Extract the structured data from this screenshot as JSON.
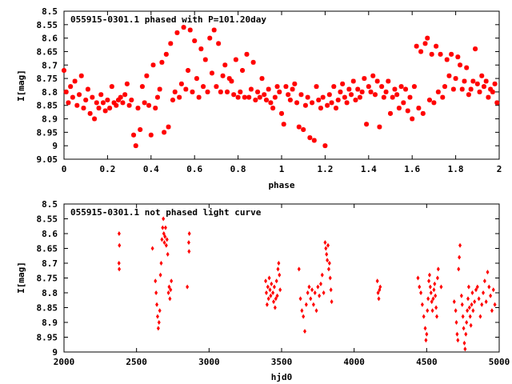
{
  "chart_data": [
    {
      "type": "scatter",
      "title": "055915-0301.1 phased with P=101.20day",
      "xlabel": "phase",
      "ylabel": "I[mag]",
      "xlim": [
        0,
        2
      ],
      "ylim": [
        8.5,
        9.05
      ],
      "y_inverted": true,
      "x_ticks": [
        "0",
        "0.2",
        "0.4",
        "0.6",
        "0.8",
        "1",
        "1.2",
        "1.4",
        "1.6",
        "1.8",
        "2"
      ],
      "y_ticks": [
        "8.5",
        "8.55",
        "8.6",
        "8.65",
        "8.7",
        "8.75",
        "8.8",
        "8.85",
        "8.9",
        "8.95",
        "9",
        "9.05"
      ],
      "grid": false,
      "marker": "star",
      "color": "#ff0000",
      "points": [
        [
          0.0,
          8.72
        ],
        [
          0.01,
          8.8
        ],
        [
          0.02,
          8.84
        ],
        [
          0.03,
          8.78
        ],
        [
          0.04,
          8.82
        ],
        [
          0.05,
          8.76
        ],
        [
          0.06,
          8.85
        ],
        [
          0.07,
          8.81
        ],
        [
          0.08,
          8.74
        ],
        [
          0.09,
          8.86
        ],
        [
          0.1,
          8.83
        ],
        [
          0.11,
          8.79
        ],
        [
          0.12,
          8.88
        ],
        [
          0.13,
          8.82
        ],
        [
          0.14,
          8.9
        ],
        [
          0.15,
          8.84
        ],
        [
          0.16,
          8.86
        ],
        [
          0.17,
          8.81
        ],
        [
          0.18,
          8.84
        ],
        [
          0.19,
          8.87
        ],
        [
          0.2,
          8.83
        ],
        [
          0.21,
          8.86
        ],
        [
          0.22,
          8.78
        ],
        [
          0.23,
          8.84
        ],
        [
          0.24,
          8.85
        ],
        [
          0.25,
          8.83
        ],
        [
          0.26,
          8.82
        ],
        [
          0.27,
          8.84
        ],
        [
          0.28,
          8.81
        ],
        [
          0.29,
          8.77
        ],
        [
          0.3,
          8.85
        ],
        [
          0.31,
          8.83
        ],
        [
          0.32,
          8.96
        ],
        [
          0.33,
          9.0
        ],
        [
          0.34,
          8.86
        ],
        [
          0.35,
          8.94
        ],
        [
          0.36,
          8.78
        ],
        [
          0.37,
          8.84
        ],
        [
          0.38,
          8.74
        ],
        [
          0.39,
          8.85
        ],
        [
          0.4,
          8.96
        ],
        [
          0.41,
          8.7
        ],
        [
          0.42,
          8.86
        ],
        [
          0.43,
          8.82
        ],
        [
          0.44,
          8.79
        ],
        [
          0.45,
          8.69
        ],
        [
          0.46,
          8.95
        ],
        [
          0.47,
          8.66
        ],
        [
          0.48,
          8.93
        ],
        [
          0.49,
          8.62
        ],
        [
          0.5,
          8.83
        ],
        [
          0.51,
          8.8
        ],
        [
          0.52,
          8.58
        ],
        [
          0.53,
          8.82
        ],
        [
          0.54,
          8.77
        ],
        [
          0.55,
          8.56
        ],
        [
          0.56,
          8.79
        ],
        [
          0.57,
          8.72
        ],
        [
          0.58,
          8.57
        ],
        [
          0.59,
          8.8
        ],
        [
          0.6,
          8.61
        ],
        [
          0.61,
          8.75
        ],
        [
          0.62,
          8.82
        ],
        [
          0.63,
          8.64
        ],
        [
          0.64,
          8.78
        ],
        [
          0.65,
          8.68
        ],
        [
          0.66,
          8.8
        ],
        [
          0.67,
          8.6
        ],
        [
          0.68,
          8.73
        ],
        [
          0.69,
          8.57
        ],
        [
          0.7,
          8.78
        ],
        [
          0.71,
          8.62
        ],
        [
          0.72,
          8.8
        ],
        [
          0.73,
          8.74
        ],
        [
          0.74,
          8.7
        ],
        [
          0.75,
          8.8
        ],
        [
          0.76,
          8.75
        ],
        [
          0.77,
          8.76
        ],
        [
          0.78,
          8.81
        ],
        [
          0.79,
          8.68
        ],
        [
          0.8,
          8.82
        ],
        [
          0.81,
          8.8
        ],
        [
          0.82,
          8.72
        ],
        [
          0.83,
          8.82
        ],
        [
          0.84,
          8.66
        ],
        [
          0.85,
          8.82
        ],
        [
          0.86,
          8.79
        ],
        [
          0.87,
          8.69
        ],
        [
          0.88,
          8.83
        ],
        [
          0.89,
          8.8
        ],
        [
          0.9,
          8.82
        ],
        [
          0.91,
          8.75
        ],
        [
          0.92,
          8.81
        ],
        [
          0.93,
          8.83
        ],
        [
          0.94,
          8.79
        ],
        [
          0.95,
          8.84
        ],
        [
          0.96,
          8.86
        ],
        [
          0.97,
          8.82
        ],
        [
          0.98,
          8.78
        ],
        [
          0.99,
          8.8
        ],
        [
          1.0,
          8.88
        ],
        [
          1.01,
          8.92
        ],
        [
          1.02,
          8.78
        ],
        [
          1.03,
          8.81
        ],
        [
          1.04,
          8.83
        ],
        [
          1.05,
          8.79
        ],
        [
          1.06,
          8.77
        ],
        [
          1.07,
          8.84
        ],
        [
          1.08,
          8.93
        ],
        [
          1.09,
          8.81
        ],
        [
          1.1,
          8.94
        ],
        [
          1.11,
          8.85
        ],
        [
          1.12,
          8.82
        ],
        [
          1.13,
          8.97
        ],
        [
          1.14,
          8.84
        ],
        [
          1.15,
          8.98
        ],
        [
          1.16,
          8.78
        ],
        [
          1.17,
          8.83
        ],
        [
          1.18,
          8.86
        ],
        [
          1.19,
          8.82
        ],
        [
          1.2,
          9.0
        ],
        [
          1.21,
          8.85
        ],
        [
          1.22,
          8.81
        ],
        [
          1.23,
          8.84
        ],
        [
          1.24,
          8.78
        ],
        [
          1.25,
          8.86
        ],
        [
          1.26,
          8.83
        ],
        [
          1.27,
          8.8
        ],
        [
          1.28,
          8.77
        ],
        [
          1.29,
          8.82
        ],
        [
          1.3,
          8.84
        ],
        [
          1.31,
          8.79
        ],
        [
          1.32,
          8.81
        ],
        [
          1.33,
          8.76
        ],
        [
          1.34,
          8.83
        ],
        [
          1.35,
          8.79
        ],
        [
          1.36,
          8.82
        ],
        [
          1.37,
          8.8
        ],
        [
          1.38,
          8.75
        ],
        [
          1.39,
          8.92
        ],
        [
          1.4,
          8.78
        ],
        [
          1.41,
          8.8
        ],
        [
          1.42,
          8.74
        ],
        [
          1.43,
          8.81
        ],
        [
          1.44,
          8.76
        ],
        [
          1.45,
          8.93
        ],
        [
          1.46,
          8.78
        ],
        [
          1.47,
          8.82
        ],
        [
          1.48,
          8.8
        ],
        [
          1.49,
          8.76
        ],
        [
          1.5,
          8.88
        ],
        [
          1.51,
          8.82
        ],
        [
          1.52,
          8.79
        ],
        [
          1.53,
          8.81
        ],
        [
          1.54,
          8.86
        ],
        [
          1.55,
          8.78
        ],
        [
          1.56,
          8.84
        ],
        [
          1.57,
          8.79
        ],
        [
          1.58,
          8.87
        ],
        [
          1.59,
          8.82
        ],
        [
          1.6,
          8.9
        ],
        [
          1.61,
          8.78
        ],
        [
          1.62,
          8.63
        ],
        [
          1.63,
          8.86
        ],
        [
          1.64,
          8.65
        ],
        [
          1.65,
          8.88
        ],
        [
          1.66,
          8.62
        ],
        [
          1.67,
          8.6
        ],
        [
          1.68,
          8.83
        ],
        [
          1.69,
          8.66
        ],
        [
          1.7,
          8.84
        ],
        [
          1.71,
          8.63
        ],
        [
          1.72,
          8.8
        ],
        [
          1.73,
          8.66
        ],
        [
          1.74,
          8.82
        ],
        [
          1.75,
          8.78
        ],
        [
          1.76,
          8.68
        ],
        [
          1.77,
          8.74
        ],
        [
          1.78,
          8.66
        ],
        [
          1.79,
          8.79
        ],
        [
          1.8,
          8.75
        ],
        [
          1.81,
          8.67
        ],
        [
          1.82,
          8.7
        ],
        [
          1.83,
          8.79
        ],
        [
          1.84,
          8.76
        ],
        [
          1.85,
          8.71
        ],
        [
          1.86,
          8.81
        ],
        [
          1.87,
          8.79
        ],
        [
          1.88,
          8.76
        ],
        [
          1.89,
          8.64
        ],
        [
          1.9,
          8.77
        ],
        [
          1.91,
          8.8
        ],
        [
          1.92,
          8.74
        ],
        [
          1.93,
          8.78
        ],
        [
          1.94,
          8.76
        ],
        [
          1.95,
          8.82
        ],
        [
          1.96,
          8.79
        ],
        [
          1.97,
          8.8
        ],
        [
          1.98,
          8.77
        ],
        [
          1.99,
          8.84
        ]
      ]
    },
    {
      "type": "scatter",
      "title": "055915-0301.1 not phased light curve",
      "xlabel": "hjd0",
      "ylabel": "I[mag]",
      "xlim": [
        2000,
        5000
      ],
      "ylim": [
        8.5,
        9.0
      ],
      "y_inverted": true,
      "x_ticks": [
        "2000",
        "2500",
        "3000",
        "3500",
        "4000",
        "4500",
        "5000"
      ],
      "y_ticks": [
        "8.5",
        "8.55",
        "8.6",
        "8.65",
        "8.7",
        "8.75",
        "8.8",
        "8.85",
        "8.9",
        "8.95",
        "9"
      ],
      "grid": false,
      "marker": "diamond",
      "color": "#ff0000",
      "points": [
        [
          2380,
          8.6
        ],
        [
          2382,
          8.64
        ],
        [
          2379,
          8.7
        ],
        [
          2381,
          8.72
        ],
        [
          2610,
          8.65
        ],
        [
          2630,
          8.76
        ],
        [
          2635,
          8.8
        ],
        [
          2640,
          8.84
        ],
        [
          2645,
          8.88
        ],
        [
          2650,
          8.92
        ],
        [
          2655,
          8.9
        ],
        [
          2660,
          8.86
        ],
        [
          2665,
          8.74
        ],
        [
          2670,
          8.7
        ],
        [
          2675,
          8.62
        ],
        [
          2680,
          8.58
        ],
        [
          2685,
          8.55
        ],
        [
          2688,
          8.6
        ],
        [
          2692,
          8.63
        ],
        [
          2696,
          8.61
        ],
        [
          2700,
          8.58
        ],
        [
          2705,
          8.64
        ],
        [
          2710,
          8.62
        ],
        [
          2715,
          8.67
        ],
        [
          2720,
          8.8
        ],
        [
          2725,
          8.78
        ],
        [
          2730,
          8.82
        ],
        [
          2735,
          8.79
        ],
        [
          2740,
          8.76
        ],
        [
          2860,
          8.63
        ],
        [
          2862,
          8.66
        ],
        [
          2864,
          8.6
        ],
        [
          2850,
          8.78
        ],
        [
          3390,
          8.76
        ],
        [
          3395,
          8.8
        ],
        [
          3400,
          8.84
        ],
        [
          3405,
          8.78
        ],
        [
          3410,
          8.82
        ],
        [
          3415,
          8.75
        ],
        [
          3420,
          8.79
        ],
        [
          3425,
          8.81
        ],
        [
          3430,
          8.77
        ],
        [
          3440,
          8.8
        ],
        [
          3445,
          8.83
        ],
        [
          3450,
          8.78
        ],
        [
          3455,
          8.85
        ],
        [
          3460,
          8.82
        ],
        [
          3465,
          8.76
        ],
        [
          3470,
          8.81
        ],
        [
          3475,
          8.72
        ],
        [
          3480,
          8.7
        ],
        [
          3485,
          8.74
        ],
        [
          3490,
          8.79
        ],
        [
          3620,
          8.72
        ],
        [
          3630,
          8.82
        ],
        [
          3640,
          8.86
        ],
        [
          3650,
          8.88
        ],
        [
          3660,
          8.93
        ],
        [
          3670,
          8.84
        ],
        [
          3680,
          8.8
        ],
        [
          3690,
          8.78
        ],
        [
          3700,
          8.82
        ],
        [
          3710,
          8.79
        ],
        [
          3720,
          8.84
        ],
        [
          3730,
          8.8
        ],
        [
          3740,
          8.86
        ],
        [
          3750,
          8.78
        ],
        [
          3760,
          8.81
        ],
        [
          3770,
          8.77
        ],
        [
          3780,
          8.74
        ],
        [
          3790,
          8.8
        ],
        [
          3800,
          8.63
        ],
        [
          3805,
          8.65
        ],
        [
          3810,
          8.67
        ],
        [
          3815,
          8.69
        ],
        [
          3820,
          8.64
        ],
        [
          3825,
          8.72
        ],
        [
          3830,
          8.7
        ],
        [
          3835,
          8.75
        ],
        [
          3840,
          8.79
        ],
        [
          3845,
          8.83
        ],
        [
          4160,
          8.76
        ],
        [
          4165,
          8.8
        ],
        [
          4170,
          8.82
        ],
        [
          4175,
          8.79
        ],
        [
          4180,
          8.78
        ],
        [
          4440,
          8.75
        ],
        [
          4450,
          8.78
        ],
        [
          4460,
          8.8
        ],
        [
          4470,
          8.84
        ],
        [
          4480,
          8.88
        ],
        [
          4490,
          8.92
        ],
        [
          4495,
          8.96
        ],
        [
          4500,
          8.94
        ],
        [
          4505,
          8.86
        ],
        [
          4510,
          8.82
        ],
        [
          4515,
          8.76
        ],
        [
          4520,
          8.74
        ],
        [
          4525,
          8.78
        ],
        [
          4530,
          8.8
        ],
        [
          4535,
          8.83
        ],
        [
          4540,
          8.86
        ],
        [
          4545,
          8.82
        ],
        [
          4550,
          8.79
        ],
        [
          4555,
          8.77
        ],
        [
          4560,
          8.81
        ],
        [
          4565,
          8.85
        ],
        [
          4570,
          8.88
        ],
        [
          4575,
          8.75
        ],
        [
          4580,
          8.72
        ],
        [
          4600,
          8.78
        ],
        [
          4690,
          8.83
        ],
        [
          4700,
          8.86
        ],
        [
          4705,
          8.9
        ],
        [
          4710,
          8.94
        ],
        [
          4715,
          8.96
        ],
        [
          4720,
          8.72
        ],
        [
          4725,
          8.68
        ],
        [
          4730,
          8.64
        ],
        [
          4740,
          8.81
        ],
        [
          4745,
          8.84
        ],
        [
          4750,
          8.88
        ],
        [
          4755,
          8.92
        ],
        [
          4760,
          8.97
        ],
        [
          4765,
          8.99
        ],
        [
          4770,
          8.94
        ],
        [
          4775,
          8.9
        ],
        [
          4780,
          8.86
        ],
        [
          4785,
          8.82
        ],
        [
          4790,
          8.78
        ],
        [
          4795,
          8.85
        ],
        [
          4800,
          8.88
        ],
        [
          4805,
          8.91
        ],
        [
          4810,
          8.84
        ],
        [
          4815,
          8.8
        ],
        [
          4820,
          8.86
        ],
        [
          4830,
          8.83
        ],
        [
          4840,
          8.79
        ],
        [
          4850,
          8.78
        ],
        [
          4860,
          8.82
        ],
        [
          4870,
          8.88
        ],
        [
          4880,
          8.84
        ],
        [
          4890,
          8.8
        ],
        [
          4900,
          8.76
        ],
        [
          4910,
          8.83
        ],
        [
          4920,
          8.73
        ],
        [
          4930,
          8.78
        ],
        [
          4940,
          8.81
        ],
        [
          4950,
          8.86
        ],
        [
          4960,
          8.79
        ],
        [
          4970,
          8.84
        ]
      ]
    }
  ]
}
